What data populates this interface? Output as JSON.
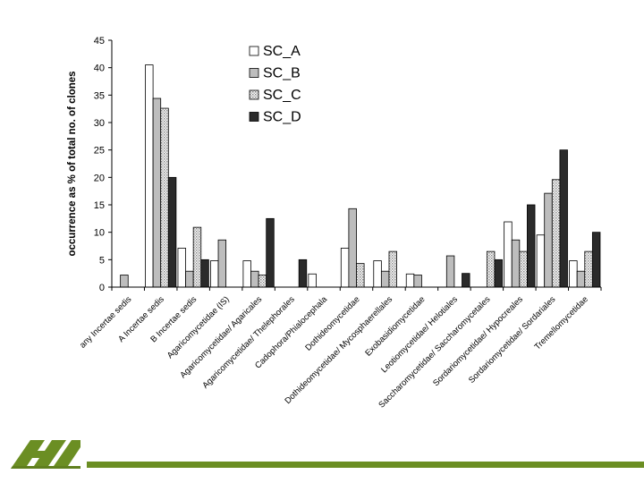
{
  "chart_data": {
    "type": "bar",
    "title": "",
    "xlabel": "",
    "ylabel": "occurrence as % of total no. of clones",
    "ylim": [
      0,
      45
    ],
    "yticks": [
      0,
      5,
      10,
      15,
      20,
      25,
      30,
      35,
      40,
      45
    ],
    "categories": [
      "any Incertae sedis",
      "A Incertae sedis",
      "B Incertae sedis",
      "Agaricomycetidae (IS)",
      "Agaricomycetidae/ Agaricales",
      "Agaricomycetidae/ Thelephorales",
      "Cadophora/Phialocephala",
      "Dothideomycetidae",
      "Dothideomycetidae/ Mycosphaerellales",
      "Exobasidiomycetidae",
      "Leotiomycetidae/ Helotiales",
      "Saccharomycetidae/ Saccharomycetales",
      "Sordariomycetidae/ Hypocreales",
      "Sordariomycetidae/ Sordariales",
      "Tremellomycetidae"
    ],
    "series": [
      {
        "name": "SC_A",
        "fill": "#ffffff",
        "values": [
          0,
          40.5,
          7.1,
          4.8,
          4.8,
          0,
          2.4,
          7.1,
          4.8,
          2.4,
          0,
          0,
          11.9,
          9.5,
          4.8
        ]
      },
      {
        "name": "SC_B",
        "fill": "#bdbdbd",
        "values": [
          2.2,
          34.4,
          2.9,
          8.6,
          2.9,
          0,
          0,
          14.3,
          2.9,
          2.2,
          5.7,
          0,
          8.6,
          17.1,
          2.9
        ]
      },
      {
        "name": "SC_C",
        "fill": "#d4d4d4",
        "values": [
          0,
          32.6,
          10.9,
          0,
          2.2,
          0,
          0,
          4.3,
          6.5,
          0,
          0,
          6.5,
          6.5,
          19.6,
          6.5
        ]
      },
      {
        "name": "SC_D",
        "fill": "#2b2b2b",
        "values": [
          0,
          20,
          5,
          0,
          12.5,
          5,
          0,
          0,
          0,
          0,
          2.5,
          5,
          15,
          25,
          10
        ]
      }
    ],
    "legend_position": "top-center"
  },
  "colors": {
    "footer_bar": "#6b8e23",
    "logo": "#6b8e23"
  }
}
